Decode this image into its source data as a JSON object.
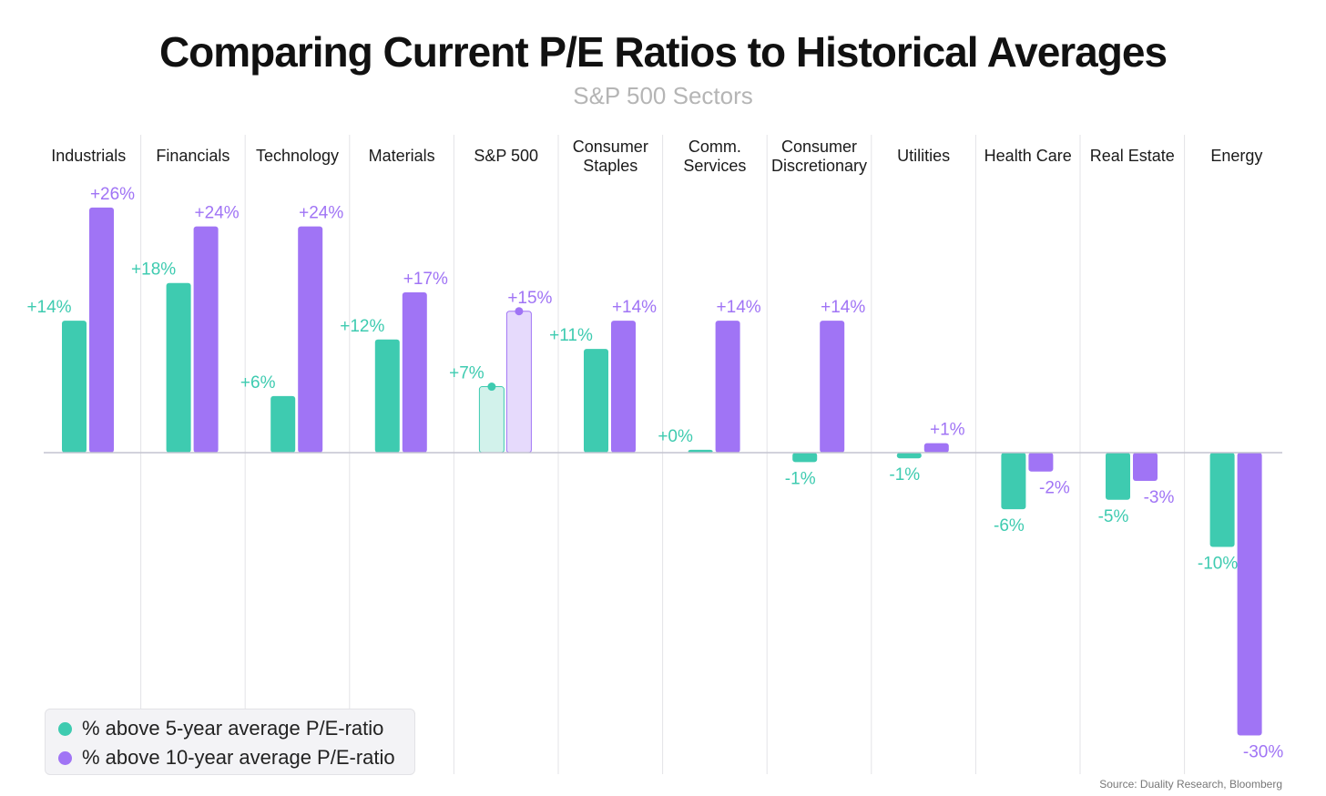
{
  "title": "Comparing Current P/E Ratios to Historical Averages",
  "subtitle": "S&P 500 Sectors",
  "source": "Source: Duality Research, Bloomberg",
  "colors": {
    "five_year": "#3ecbb0",
    "ten_year": "#a074f5",
    "five_year_light": "#d2f2eb",
    "ten_year_light": "#e6dafc",
    "grid": "#e3e3e7",
    "baseline": "#c4c4d0"
  },
  "legend": {
    "five_year_label": "% above 5-year average P/E-ratio",
    "ten_year_label": "% above 10-year average P/E-ratio",
    "placement": "bottom-left"
  },
  "chart_data": {
    "type": "bar",
    "title": "Comparing Current P/E Ratios to Historical Averages",
    "subtitle": "S&P 500 Sectors",
    "categories": [
      [
        "Industrials"
      ],
      [
        "Financials"
      ],
      [
        "Technology"
      ],
      [
        "Materials"
      ],
      [
        "S&P 500"
      ],
      [
        "Consumer",
        "Staples"
      ],
      [
        "Comm.",
        "Services"
      ],
      [
        "Consumer",
        "Discretionary"
      ],
      [
        "Utilities"
      ],
      [
        "Health Care"
      ],
      [
        "Real Estate"
      ],
      [
        "Energy"
      ]
    ],
    "highlight_category": "S&P 500",
    "series": [
      {
        "name": "% above 5-year average P/E-ratio",
        "color": "#3ecbb0",
        "values": [
          14,
          18,
          6,
          12,
          7,
          11,
          0.3,
          -1,
          -0.6,
          -6,
          -5,
          -10
        ],
        "labels": [
          "+14%",
          "+18%",
          "+6%",
          "+12%",
          "+7%",
          "+11%",
          "+0%",
          "-1%",
          "-1%",
          "-6%",
          "-5%",
          "-10%"
        ]
      },
      {
        "name": "% above 10-year average P/E-ratio",
        "color": "#a074f5",
        "values": [
          26,
          24,
          24,
          17,
          15,
          14,
          14,
          14,
          1,
          -2,
          -3,
          -30
        ],
        "labels": [
          "+26%",
          "+24%",
          "+24%",
          "+17%",
          "+15%",
          "+14%",
          "+14%",
          "+14%",
          "+1%",
          "-2%",
          "-3%",
          "-30%"
        ]
      }
    ],
    "ylim": [
      -30,
      26
    ],
    "grid": "vertical separators between categories",
    "legend": "bottom-left"
  }
}
